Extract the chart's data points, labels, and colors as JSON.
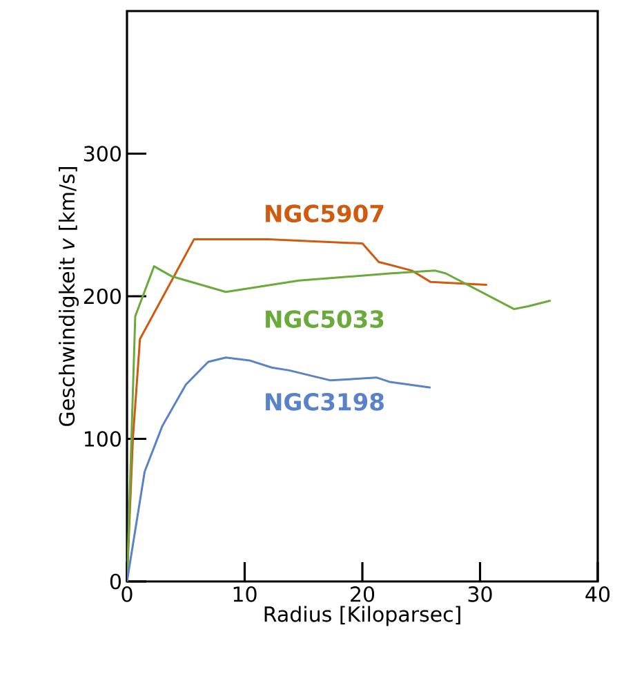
{
  "chart_data": {
    "type": "line",
    "xlabel": "Radius  [Kiloparsec]",
    "ylabel": "Geschwindigkeit *v*  [km/s]",
    "xlim": [
      0,
      40
    ],
    "ylim": [
      0,
      400
    ],
    "xticks": [
      0,
      10,
      20,
      30,
      40
    ],
    "yticks": [
      0,
      100,
      200,
      300
    ],
    "grid": false,
    "marker": "none",
    "line_style": "solid",
    "series": [
      {
        "name": "NGC5907",
        "color": "#d05a10",
        "x": [
          0,
          0.5,
          1.1,
          3.4,
          5.7,
          12,
          20.0,
          21.4,
          21.9,
          24.2,
          25.8,
          30.6
        ],
        "values": [
          0,
          100,
          170,
          205,
          240,
          240,
          237,
          224,
          223,
          218,
          210,
          208
        ]
      },
      {
        "name": "NGC5033",
        "color": "#6aaa3a",
        "x": [
          0,
          0.7,
          2.3,
          3.8,
          8.4,
          14.6,
          22.3,
          26.2,
          27.1,
          32.9,
          34.1,
          36.0
        ],
        "values": [
          0,
          186,
          221,
          214,
          203,
          211,
          216,
          218,
          216,
          191,
          193,
          197
        ]
      },
      {
        "name": "NGC3198",
        "color": "#5a82c8",
        "x": [
          0,
          1.5,
          3.0,
          5.0,
          6.9,
          8.4,
          10.4,
          12.3,
          13.8,
          17.3,
          21.2,
          22.3,
          25.8
        ],
        "values": [
          0,
          77,
          109,
          138,
          154,
          157,
          155,
          150,
          148,
          141,
          143,
          140,
          136
        ]
      }
    ]
  }
}
